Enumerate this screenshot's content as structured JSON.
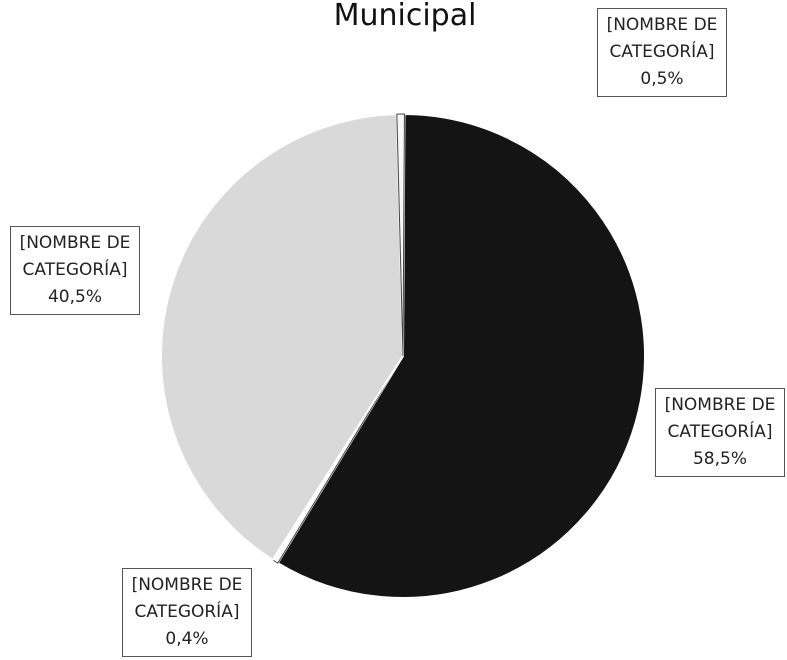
{
  "chart_data": {
    "type": "pie",
    "title": "Municipal",
    "categories": [
      "[NOMBRE DE CATEGORÍA]",
      "[NOMBRE DE CATEGORÍA]",
      "[NOMBRE DE CATEGORÍA]",
      "[NOMBRE DE CATEGORÍA]"
    ],
    "values": [
      58.5,
      0.4,
      40.5,
      0.5
    ],
    "value_labels": [
      "58,5%",
      "0,4%",
      "40,5%",
      "0,5%"
    ],
    "colors": [
      "#141414",
      "#ffffff",
      "#d9d9d9",
      "#f7f7f7"
    ]
  }
}
